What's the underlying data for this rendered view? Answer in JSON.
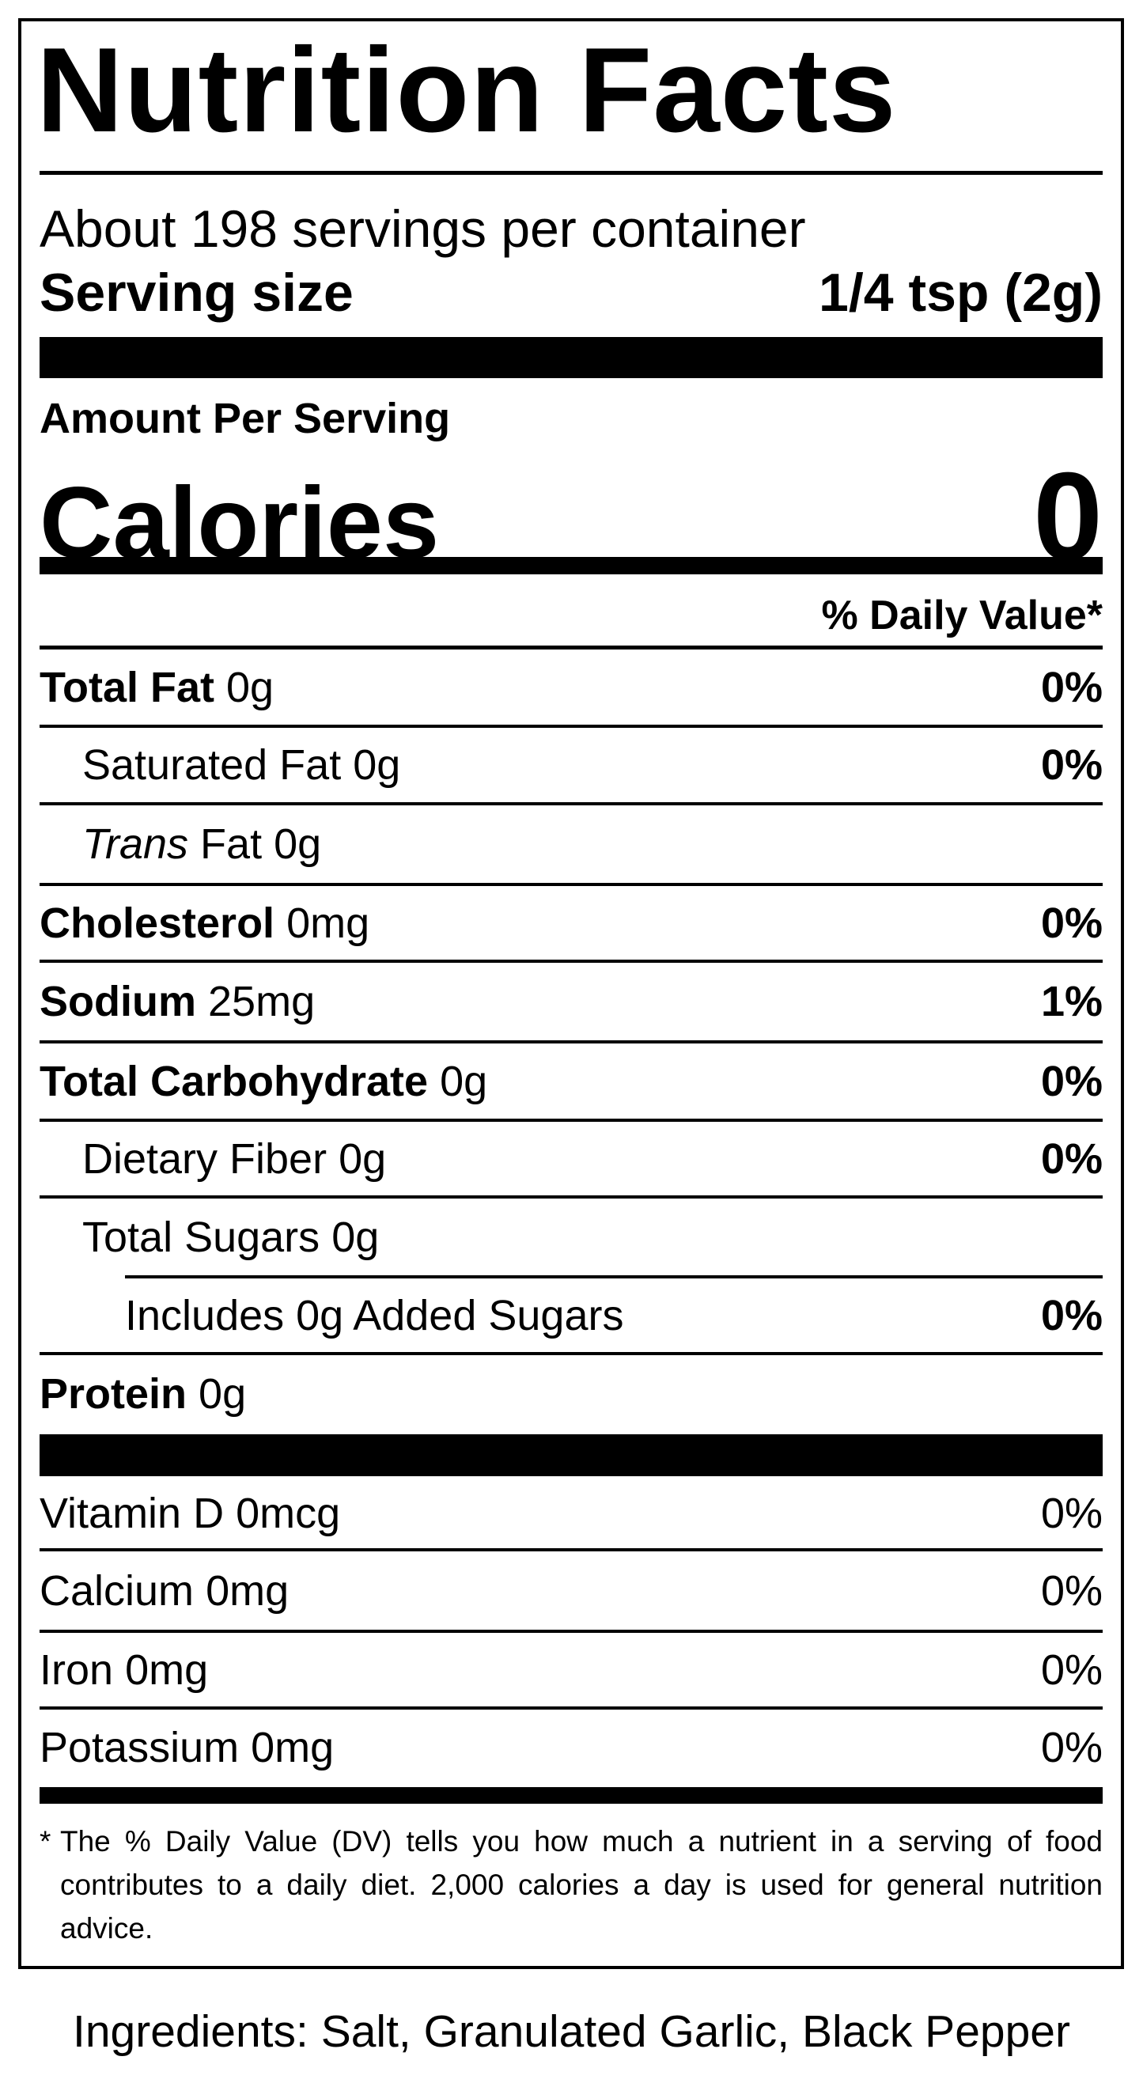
{
  "label": {
    "title": "Nutrition Facts",
    "servings_per_container": "About 198 servings per container",
    "serving_size_label": "Serving size",
    "serving_size_value": "1/4 tsp (2g)",
    "amount_per_serving": "Amount Per Serving",
    "calories_label": "Calories",
    "calories_value": "0",
    "daily_value_header": "% Daily Value*",
    "nutrients": [
      {
        "name": "Total Fat",
        "amount": "0g",
        "dv": "0%",
        "bold": true,
        "indent": 0
      },
      {
        "name": "Saturated Fat",
        "amount": "0g",
        "dv": "0%",
        "bold": false,
        "indent": 1
      },
      {
        "italic_prefix": "Trans",
        "name": "Fat",
        "amount": "0g",
        "dv": "",
        "bold": false,
        "indent": 1
      },
      {
        "name": "Cholesterol",
        "amount": "0mg",
        "dv": "0%",
        "bold": true,
        "indent": 0
      },
      {
        "name": "Sodium",
        "amount": "25mg",
        "dv": "1%",
        "bold": true,
        "indent": 0
      },
      {
        "name": "Total Carbohydrate",
        "amount": "0g",
        "dv": "0%",
        "bold": true,
        "indent": 0
      },
      {
        "name": "Dietary Fiber",
        "amount": "0g",
        "dv": "0%",
        "bold": false,
        "indent": 1
      },
      {
        "name": "Total Sugars",
        "amount": "0g",
        "dv": "",
        "bold": false,
        "indent": 1
      },
      {
        "name": "Includes 0g Added Sugars",
        "amount": "",
        "dv": "0%",
        "bold": false,
        "indent": 2
      },
      {
        "name": "Protein",
        "amount": "0g",
        "dv": "",
        "bold": true,
        "indent": 0
      }
    ],
    "vitamins": [
      {
        "name": "Vitamin D",
        "amount": "0mcg",
        "dv": "0%"
      },
      {
        "name": "Calcium",
        "amount": "0mg",
        "dv": "0%"
      },
      {
        "name": "Iron",
        "amount": "0mg",
        "dv": "0%"
      },
      {
        "name": "Potassium",
        "amount": "0mg",
        "dv": "0%"
      }
    ],
    "footnote_marker": "*",
    "footnote": "The % Daily Value (DV) tells you how much a nutrient in a serving of food contributes to a daily diet. 2,000 calories a day is used for general nutrition advice."
  },
  "ingredients": "Ingredients: Salt, Granulated Garlic, Black Pepper"
}
